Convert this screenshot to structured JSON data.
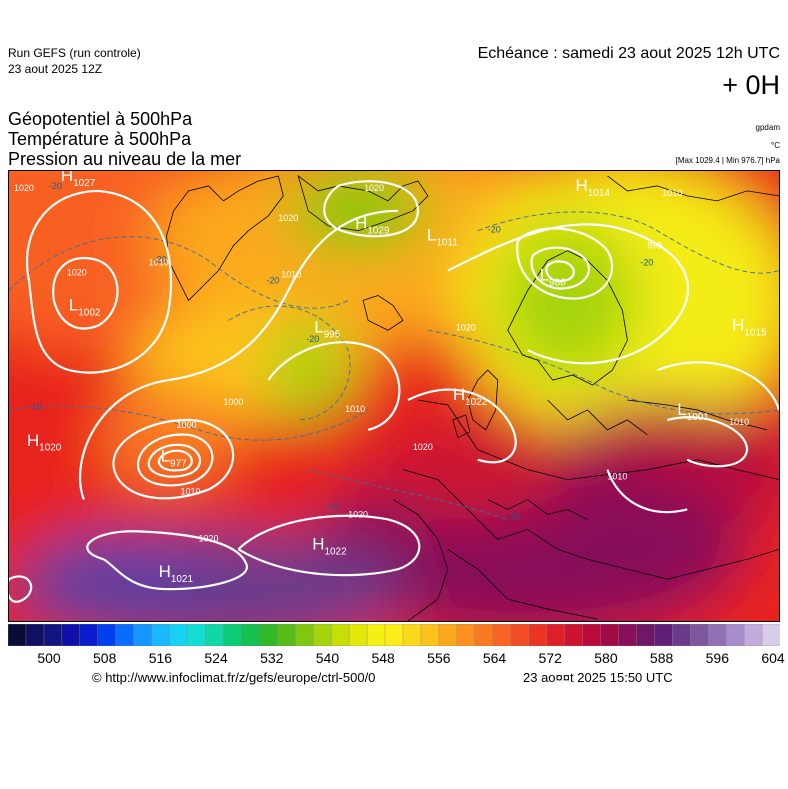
{
  "header": {
    "run_title": "Run GEFS (run controle)",
    "run_date": "23 aout 2025 12Z",
    "echeance": "Echéance : samedi 23 aout 2025 12h UTC",
    "lead": "+ 0H"
  },
  "params": [
    "Géopotentiel à 500hPa",
    "Température à 500hPa",
    "Pression au niveau de la mer"
  ],
  "units": {
    "geopotential": "gpdam",
    "temperature": "°C",
    "pressure": "[Max 1029.4 | Min 976.7] hPa"
  },
  "map": {
    "pressure_centers": [
      {
        "type": "H",
        "value": "1027"
      },
      {
        "type": "H",
        "value": "1029"
      },
      {
        "type": "L",
        "value": "1011"
      },
      {
        "type": "H",
        "value": "1014"
      },
      {
        "type": "L",
        "value": "1002"
      },
      {
        "type": "L",
        "value": "995"
      },
      {
        "type": "L",
        "value": "988"
      },
      {
        "type": "H",
        "value": "1015"
      },
      {
        "type": "H",
        "value": "1022"
      },
      {
        "type": "L",
        "value": "1001"
      },
      {
        "type": "H",
        "value": "1020"
      },
      {
        "type": "L",
        "value": "977"
      },
      {
        "type": "H",
        "value": "1022"
      },
      {
        "type": "H",
        "value": "1021"
      }
    ],
    "isobar_labels": [
      "1020",
      "1020",
      "1010",
      "1020",
      "1010",
      "999",
      "1020",
      "1010",
      "1000",
      "1010",
      "1000",
      "1010",
      "1020",
      "1020",
      "1020",
      "1010",
      "1020",
      "1010"
    ],
    "temperature_labels": [
      "-20",
      "-20",
      "-20",
      "-20",
      "-20",
      "-20",
      "-10",
      "-10",
      "-10"
    ]
  },
  "colorbar": {
    "stops": [
      "#0b0b3a",
      "#101060",
      "#121580",
      "#1010a8",
      "#0a1ed0",
      "#0040f0",
      "#0a6cff",
      "#1496ff",
      "#1ab8ff",
      "#18d2f4",
      "#14ddd2",
      "#10d6a8",
      "#0ccc78",
      "#14c050",
      "#30b828",
      "#58bc18",
      "#80c810",
      "#a6d40c",
      "#c8de08",
      "#e4e80a",
      "#f4f014",
      "#fcec18",
      "#fcd81c",
      "#fcc21c",
      "#fca81c",
      "#fc9020",
      "#fa7a20",
      "#f86424",
      "#f44c24",
      "#ec3424",
      "#e02028",
      "#cc1430",
      "#b80c3c",
      "#a00c48",
      "#881058",
      "#701868",
      "#602078",
      "#6a3a8c",
      "#7e56a0",
      "#9470b6",
      "#a98ccb",
      "#c2acde",
      "#d8cce8"
    ],
    "ticks": [
      "500",
      "508",
      "516",
      "524",
      "532",
      "540",
      "548",
      "556",
      "564",
      "572",
      "580",
      "588",
      "596",
      "604"
    ],
    "tick_min": 500,
    "tick_max": 604
  },
  "footer": {
    "credit": "© http://www.infoclimat.fr/z/gefs/europe/ctrl-500/0",
    "timestamp": "23 ao¤¤t 2025 15:50 UTC"
  }
}
